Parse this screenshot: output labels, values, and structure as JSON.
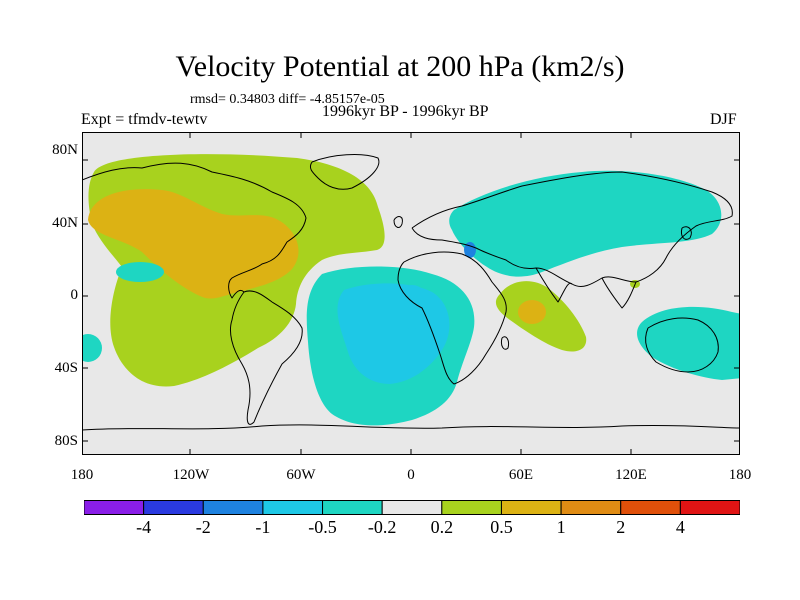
{
  "title": "Velocity Potential at 200 hPa (km2/s)",
  "stats": "rmsd= 0.34803 diff= -4.85157e-05",
  "experiment": "Expt = tfmdv-tewtv",
  "period": "1996kyr BP - 1996kyr BP",
  "season": "DJF",
  "lat_labels": [
    "80N",
    "40N",
    "0",
    "40S",
    "80S"
  ],
  "lon_labels": [
    "180",
    "120W",
    "60W",
    "0",
    "60E",
    "120E",
    "180"
  ],
  "colorbar": {
    "labels": [
      "-4",
      "-2",
      "-1",
      "-0.5",
      "-0.2",
      "0.2",
      "0.5",
      "1",
      "2",
      "4"
    ],
    "colors": [
      "#8a1ee8",
      "#2a3ae0",
      "#1e82e0",
      "#1ec8e6",
      "#1ed6c2",
      "#e8e8e8",
      "#a8d21e",
      "#dcb214",
      "#e08c14",
      "#e0500a",
      "#e01414"
    ]
  },
  "colors": {
    "ocean_neutral": "#e8e8e8",
    "coast": "#000000"
  }
}
